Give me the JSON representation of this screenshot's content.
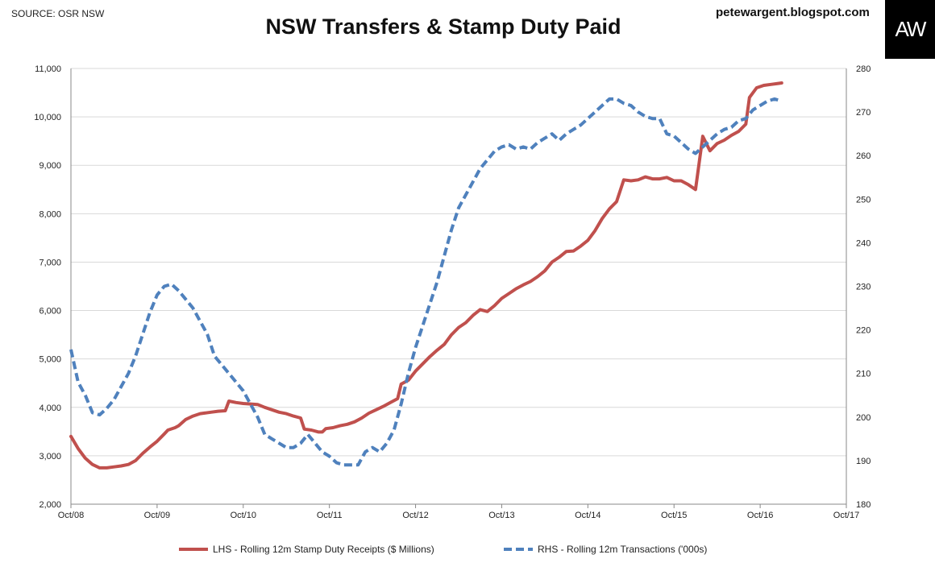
{
  "source_label": "SOURCE: OSR NSW",
  "website": "petewargent.blogspot.com",
  "logo_text": "AW",
  "chart_data": {
    "type": "line",
    "title": "NSW Transfers & Stamp Duty Paid",
    "x_ticks": [
      "Oct/08",
      "Oct/09",
      "Oct/10",
      "Oct/11",
      "Oct/12",
      "Oct/13",
      "Oct/14",
      "Oct/15",
      "Oct/16",
      "Oct/17"
    ],
    "y_left": {
      "min": 2000,
      "max": 11000,
      "ticks": [
        "2,000",
        "3,000",
        "4,000",
        "5,000",
        "6,000",
        "7,000",
        "8,000",
        "9,000",
        "10,000",
        "11,000"
      ]
    },
    "y_right": {
      "min": 180,
      "max": 280,
      "ticks": [
        "180",
        "190",
        "200",
        "210",
        "220",
        "230",
        "240",
        "250",
        "260",
        "270",
        "280"
      ]
    },
    "grid": "horizontal",
    "legend_position": "bottom",
    "series": [
      {
        "name": "LHS - Rolling 12m Stamp Duty Receipts ($ Millions)",
        "axis": "left",
        "color": "#c0504d",
        "style": "solid",
        "points": [
          [
            0,
            3400
          ],
          [
            2,
            3150
          ],
          [
            4,
            2950
          ],
          [
            6,
            2820
          ],
          [
            8,
            2750
          ],
          [
            10,
            2750
          ],
          [
            12,
            2770
          ],
          [
            14,
            2790
          ],
          [
            16,
            2820
          ],
          [
            18,
            2900
          ],
          [
            20,
            3050
          ],
          [
            22,
            3180
          ],
          [
            24,
            3300
          ],
          [
            26,
            3450
          ],
          [
            27,
            3530
          ],
          [
            29,
            3580
          ],
          [
            30,
            3620
          ],
          [
            32,
            3750
          ],
          [
            34,
            3820
          ],
          [
            36,
            3870
          ],
          [
            37,
            3880
          ],
          [
            39,
            3900
          ],
          [
            41,
            3920
          ],
          [
            43,
            3930
          ],
          [
            44,
            4130
          ],
          [
            46,
            4100
          ],
          [
            48,
            4080
          ],
          [
            50,
            4070
          ],
          [
            52,
            4060
          ],
          [
            54,
            4000
          ],
          [
            56,
            3950
          ],
          [
            58,
            3900
          ],
          [
            60,
            3870
          ],
          [
            62,
            3820
          ],
          [
            64,
            3780
          ],
          [
            65,
            3550
          ],
          [
            67,
            3530
          ],
          [
            69,
            3490
          ],
          [
            70,
            3490
          ],
          [
            71,
            3560
          ],
          [
            73,
            3580
          ],
          [
            75,
            3620
          ],
          [
            77,
            3650
          ],
          [
            79,
            3700
          ],
          [
            81,
            3780
          ],
          [
            83,
            3880
          ],
          [
            85,
            3950
          ],
          [
            87,
            4020
          ],
          [
            89,
            4100
          ],
          [
            91,
            4180
          ],
          [
            92,
            4480
          ],
          [
            94,
            4560
          ],
          [
            96,
            4750
          ],
          [
            98,
            4900
          ],
          [
            100,
            5050
          ],
          [
            102,
            5180
          ],
          [
            104,
            5300
          ],
          [
            106,
            5500
          ],
          [
            108,
            5650
          ],
          [
            110,
            5750
          ],
          [
            112,
            5900
          ],
          [
            114,
            6020
          ],
          [
            116,
            5980
          ],
          [
            118,
            6100
          ],
          [
            120,
            6250
          ],
          [
            122,
            6350
          ],
          [
            124,
            6450
          ],
          [
            126,
            6530
          ],
          [
            128,
            6600
          ],
          [
            130,
            6700
          ],
          [
            132,
            6820
          ],
          [
            134,
            7000
          ],
          [
            136,
            7100
          ],
          [
            138,
            7220
          ],
          [
            140,
            7230
          ],
          [
            142,
            7330
          ],
          [
            144,
            7450
          ],
          [
            146,
            7650
          ],
          [
            148,
            7900
          ],
          [
            150,
            8100
          ],
          [
            152,
            8250
          ],
          [
            154,
            8700
          ],
          [
            156,
            8680
          ],
          [
            158,
            8700
          ],
          [
            160,
            8760
          ],
          [
            162,
            8720
          ],
          [
            164,
            8720
          ],
          [
            166,
            8750
          ],
          [
            168,
            8680
          ],
          [
            170,
            8680
          ],
          [
            172,
            8600
          ],
          [
            174,
            8500
          ],
          [
            176,
            9600
          ],
          [
            178,
            9300
          ],
          [
            180,
            9450
          ],
          [
            182,
            9520
          ],
          [
            184,
            9620
          ],
          [
            186,
            9700
          ],
          [
            188,
            9850
          ],
          [
            189,
            10400
          ],
          [
            191,
            10600
          ],
          [
            193,
            10650
          ],
          [
            195,
            10670
          ],
          [
            197,
            10690
          ],
          [
            198,
            10700
          ]
        ]
      },
      {
        "name": "RHS - Rolling 12m Transactions ('000s)",
        "axis": "right",
        "color": "#4f81bd",
        "style": "dashed",
        "points": [
          [
            0,
            215.5
          ],
          [
            2,
            208
          ],
          [
            4,
            205
          ],
          [
            6,
            201
          ],
          [
            8,
            200.5
          ],
          [
            10,
            202
          ],
          [
            12,
            204
          ],
          [
            14,
            207
          ],
          [
            16,
            210
          ],
          [
            18,
            214
          ],
          [
            20,
            219
          ],
          [
            22,
            224
          ],
          [
            24,
            228
          ],
          [
            26,
            230
          ],
          [
            28,
            230.5
          ],
          [
            30,
            229
          ],
          [
            32,
            227
          ],
          [
            34,
            225
          ],
          [
            36,
            222
          ],
          [
            38,
            219
          ],
          [
            40,
            214
          ],
          [
            42,
            212
          ],
          [
            44,
            210
          ],
          [
            46,
            208
          ],
          [
            48,
            206
          ],
          [
            50,
            203
          ],
          [
            52,
            200
          ],
          [
            54,
            196
          ],
          [
            56,
            195
          ],
          [
            58,
            194
          ],
          [
            60,
            193
          ],
          [
            62,
            193
          ],
          [
            64,
            194
          ],
          [
            66,
            196
          ],
          [
            68,
            194
          ],
          [
            70,
            192
          ],
          [
            72,
            191
          ],
          [
            74,
            189.5
          ],
          [
            76,
            189
          ],
          [
            78,
            189
          ],
          [
            80,
            189
          ],
          [
            82,
            192
          ],
          [
            84,
            193
          ],
          [
            86,
            192
          ],
          [
            88,
            194
          ],
          [
            90,
            197
          ],
          [
            92,
            203
          ],
          [
            94,
            210
          ],
          [
            96,
            216
          ],
          [
            98,
            221
          ],
          [
            100,
            226
          ],
          [
            102,
            231
          ],
          [
            104,
            237
          ],
          [
            106,
            243
          ],
          [
            108,
            248
          ],
          [
            110,
            251
          ],
          [
            112,
            254
          ],
          [
            114,
            257
          ],
          [
            116,
            259
          ],
          [
            118,
            261
          ],
          [
            120,
            262
          ],
          [
            122,
            262.5
          ],
          [
            124,
            261.5
          ],
          [
            126,
            262
          ],
          [
            128,
            261.5
          ],
          [
            130,
            263
          ],
          [
            132,
            264
          ],
          [
            134,
            265
          ],
          [
            136,
            263.5
          ],
          [
            138,
            265
          ],
          [
            140,
            266
          ],
          [
            142,
            267
          ],
          [
            144,
            268.5
          ],
          [
            146,
            270
          ],
          [
            148,
            271.5
          ],
          [
            150,
            273
          ],
          [
            152,
            273
          ],
          [
            154,
            272
          ],
          [
            156,
            271.5
          ],
          [
            158,
            270
          ],
          [
            160,
            269
          ],
          [
            162,
            268.5
          ],
          [
            164,
            268.5
          ],
          [
            166,
            265
          ],
          [
            168,
            264.5
          ],
          [
            170,
            263
          ],
          [
            172,
            261.5
          ],
          [
            174,
            260.5
          ],
          [
            176,
            262
          ],
          [
            178,
            263.5
          ],
          [
            180,
            265
          ],
          [
            182,
            266
          ],
          [
            184,
            266.5
          ],
          [
            186,
            268
          ],
          [
            188,
            268.5
          ],
          [
            190,
            270.5
          ],
          [
            192,
            271.5
          ],
          [
            194,
            272.5
          ],
          [
            196,
            273
          ],
          [
            198,
            272.5
          ]
        ]
      }
    ]
  }
}
